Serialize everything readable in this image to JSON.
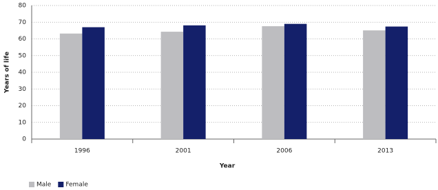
{
  "chart_data": {
    "type": "bar",
    "x_label": "Year",
    "y_label": "Years of life",
    "categories": [
      "1996",
      "2001",
      "2006",
      "2013"
    ],
    "series": [
      {
        "name": "Male",
        "color": "#bdbdc0",
        "values": [
          63.2,
          64.3,
          67.6,
          65.1
        ]
      },
      {
        "name": "Female",
        "color": "#14206a",
        "values": [
          67.0,
          68.1,
          69.0,
          67.4
        ]
      }
    ],
    "ylim": [
      0,
      80
    ],
    "yticks": [
      0,
      10,
      20,
      30,
      40,
      50,
      60,
      70,
      80
    ],
    "grid": true,
    "legend": "bottom-left"
  }
}
